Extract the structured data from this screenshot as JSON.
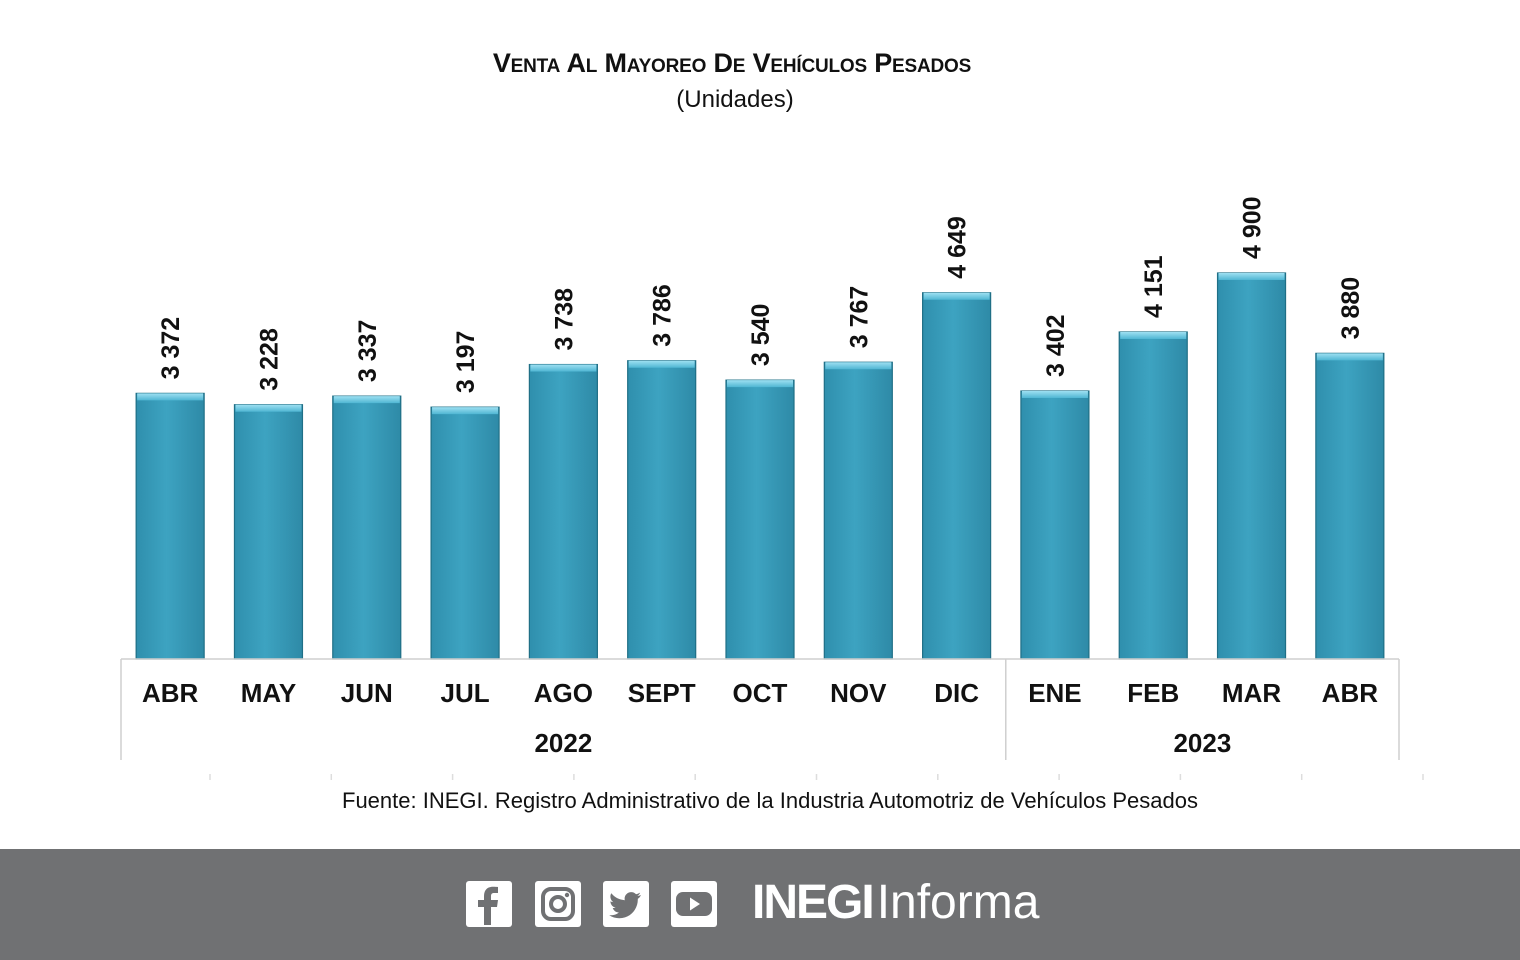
{
  "chart_data": {
    "type": "bar",
    "title": "Venta al mayoreo de vehículos pesados",
    "subtitle": "(Unidades)",
    "categories": [
      "ABR",
      "MAY",
      "JUN",
      "JUL",
      "AGO",
      "SEPT",
      "OCT",
      "NOV",
      "DIC",
      "ENE",
      "FEB",
      "MAR",
      "ABR"
    ],
    "values": [
      3372,
      3228,
      3337,
      3197,
      3738,
      3786,
      3540,
      3767,
      4649,
      3402,
      4151,
      4900,
      3880
    ],
    "value_labels": [
      "3 372",
      "3 228",
      "3 337",
      "3 197",
      "3 738",
      "3 786",
      "3 540",
      "3 767",
      "4 649",
      "3 402",
      "4 151",
      "4 900",
      "3 880"
    ],
    "year_groups": [
      {
        "label": "2022",
        "count": 9
      },
      {
        "label": "2023",
        "count": 4
      }
    ],
    "ylim": [
      0,
      4900
    ],
    "grid": false,
    "legend": "none",
    "bar_color": "#3a9fbe",
    "bar_highlight": "#6cc6e0",
    "bar_edge": "#1f6f86"
  },
  "source": "Fuente: INEGI. Registro Administrativo de la Industria Automotriz de Vehículos Pesados",
  "footer": {
    "background": "#707173",
    "icons": [
      "facebook-icon",
      "instagram-icon",
      "twitter-icon",
      "youtube-icon"
    ],
    "brand_bold": "INEGI",
    "brand_light": "Informa"
  }
}
